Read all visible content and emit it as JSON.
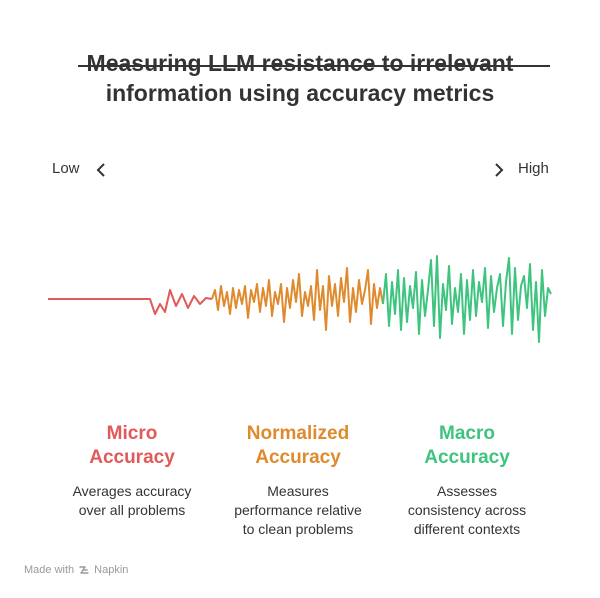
{
  "title": {
    "line1": "Measuring LLM resistance to irrelevant",
    "line2": "information using accuracy metrics"
  },
  "scale": {
    "low_label": "Low",
    "high_label": "High",
    "left_icon": "chevron-left-icon",
    "right_icon": "chevron-right-icon"
  },
  "colors": {
    "micro": "#e05a5a",
    "normalized": "#e08a2e",
    "macro": "#3ec47e"
  },
  "metrics": [
    {
      "title_line1": "Micro",
      "title_line2": "Accuracy",
      "desc_lines": [
        "Averages accuracy",
        "over all problems"
      ]
    },
    {
      "title_line1": "Normalized",
      "title_line2": "Accuracy",
      "desc_lines": [
        "Measures",
        "performance relative",
        "to clean problems"
      ]
    },
    {
      "title_line1": "Macro",
      "title_line2": "Accuracy",
      "desc_lines": [
        "Assesses",
        "consistency across",
        "different contexts"
      ]
    }
  ],
  "footer": {
    "prefix": "Made with",
    "brand": "Napkin",
    "icon": "napkin-logo-icon"
  }
}
